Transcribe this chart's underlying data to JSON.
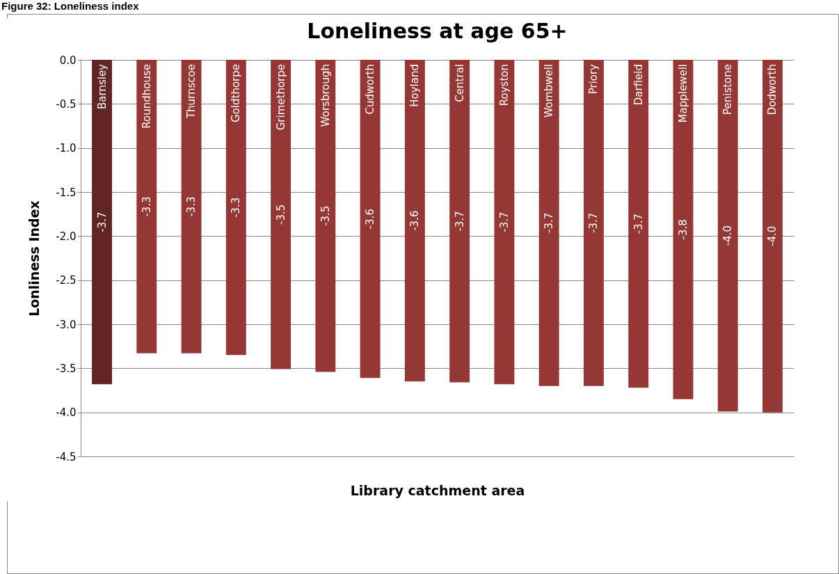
{
  "chart_data": {
    "type": "bar",
    "title": "Loneliness at age 65+",
    "xlabel": "Library catchment area",
    "ylabel": "Lonliness Index",
    "annotations": [
      "Figure 32: Loneliness index"
    ],
    "categories": [
      "Barnsley",
      "Roundhouse",
      "Thurnscoe",
      "Goldthorpe",
      "Grimethorpe",
      "Worsbrough",
      "Cudworth",
      "Hoyland",
      "Central",
      "Royston",
      "Wombwell",
      "Priory",
      "Darfield",
      "Mapplewell",
      "Penistone",
      "Dodworth"
    ],
    "values": [
      -3.68,
      -3.33,
      -3.33,
      -3.35,
      -3.51,
      -3.54,
      -3.61,
      -3.65,
      -3.66,
      -3.68,
      -3.7,
      -3.7,
      -3.72,
      -3.85,
      -3.99,
      -4.0
    ],
    "value_labels": [
      "-3.7",
      "-3.3",
      "-3.3",
      "-3.3",
      "-3.5",
      "-3.5",
      "-3.6",
      "-3.6",
      "-3.7",
      "-3.7",
      "-3.7",
      "-3.7",
      "-3.7",
      "-3.8",
      "-4.0",
      "-4.0"
    ],
    "colors": [
      "#632523",
      "#953735",
      "#953735",
      "#953735",
      "#953735",
      "#953735",
      "#953735",
      "#953735",
      "#953735",
      "#953735",
      "#953735",
      "#953735",
      "#953735",
      "#953735",
      "#953735",
      "#953735"
    ],
    "ylim": [
      -4.5,
      0
    ],
    "yticks": [
      {
        "value": 0,
        "label": "0.0"
      },
      {
        "value": -0.5,
        "label": "-0.5"
      },
      {
        "value": -1,
        "label": "-1.0"
      },
      {
        "value": -1.5,
        "label": "-1.5"
      },
      {
        "value": -2,
        "label": "-2.0"
      },
      {
        "value": -2.5,
        "label": "-2.5"
      },
      {
        "value": -3,
        "label": "-3.0"
      },
      {
        "value": -3.5,
        "label": "-3.5"
      },
      {
        "value": -4,
        "label": "-4.0"
      },
      {
        "value": -4.5,
        "label": "-4.5"
      }
    ],
    "grid": true
  }
}
